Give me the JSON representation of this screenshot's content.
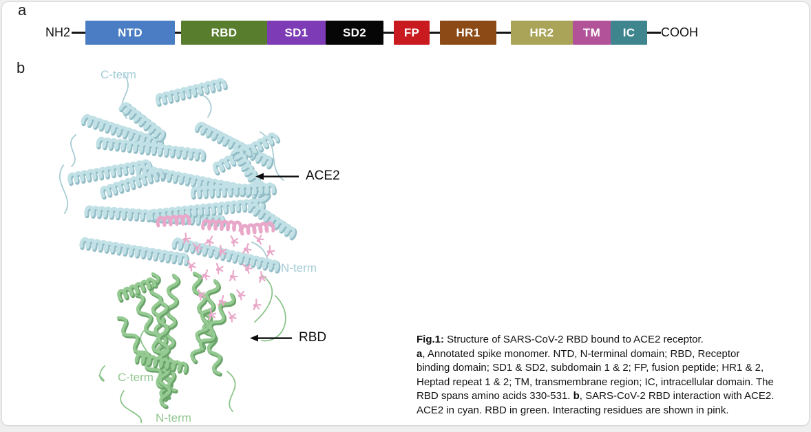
{
  "panel_a": {
    "label": "a",
    "left_terminus": "NH2",
    "right_terminus": "COOH",
    "domains": [
      {
        "label": "NTD",
        "color": "#4a7dc4",
        "linker_after": true
      },
      {
        "label": "RBD",
        "color": "#587d2d",
        "linker_after": false
      },
      {
        "label": "SD1",
        "color": "#7d3cb5",
        "linker_after": false
      },
      {
        "label": "SD2",
        "color": "#060606",
        "linker_after": true
      },
      {
        "label": "FP",
        "color": "#c81a1f",
        "linker_after": true
      },
      {
        "label": "HR1",
        "color": "#8c4a16",
        "linker_after": true
      },
      {
        "label": "HR2",
        "color": "#aaa458",
        "linker_after": false
      },
      {
        "label": "TM",
        "color": "#b2539a",
        "linker_after": false
      },
      {
        "label": "IC",
        "color": "#3f858e",
        "linker_after": true
      }
    ]
  },
  "panel_b": {
    "label": "b",
    "annotations": {
      "ace2_arrow_label": "ACE2",
      "rbd_arrow_label": "RBD",
      "ace2_c_term": "C-term",
      "ace2_n_term": "N-term",
      "rbd_c_term": "C-term",
      "rbd_n_term": "N-term"
    },
    "structure_colors": {
      "ace2_cyan": "#c1e1e6",
      "ace2_cyan_shadow": "#93bdc6",
      "rbd_green": "#95cb92",
      "rbd_green_shadow": "#6aa369",
      "residues_pink": "#e9a8c9",
      "loop_cyan": "#a7ccd3",
      "loop_green": "#8cc48a"
    }
  },
  "caption": {
    "lines": [
      {
        "segments": [
          {
            "text": "Fig.1:",
            "bold": true
          },
          {
            "text": " Structure of SARS-CoV-2 RBD bound to ACE2 receptor.",
            "bold": false
          }
        ]
      },
      {
        "segments": [
          {
            "text": "a",
            "bold": true
          },
          {
            "text": ", Annotated spike monomer. NTD, N-terminal domain; RBD, Receptor",
            "bold": false
          }
        ]
      },
      {
        "segments": [
          {
            "text": "binding domain; SD1 & SD2, subdomain 1 & 2; FP, fusion peptide; HR1 & 2,",
            "bold": false
          }
        ]
      },
      {
        "segments": [
          {
            "text": "Heptad repeat 1 & 2; TM, transmembrane region; IC, intracellular domain. The",
            "bold": false
          }
        ]
      },
      {
        "segments": [
          {
            "text": "RBD spans amino acids 330-531. ",
            "bold": false
          },
          {
            "text": "b",
            "bold": true
          },
          {
            "text": ", SARS-CoV-2 RBD interaction with ACE2.",
            "bold": false
          }
        ]
      },
      {
        "segments": [
          {
            "text": "ACE2 in cyan. RBD in green. Interacting residues are shown in pink.",
            "bold": false
          }
        ]
      }
    ]
  }
}
